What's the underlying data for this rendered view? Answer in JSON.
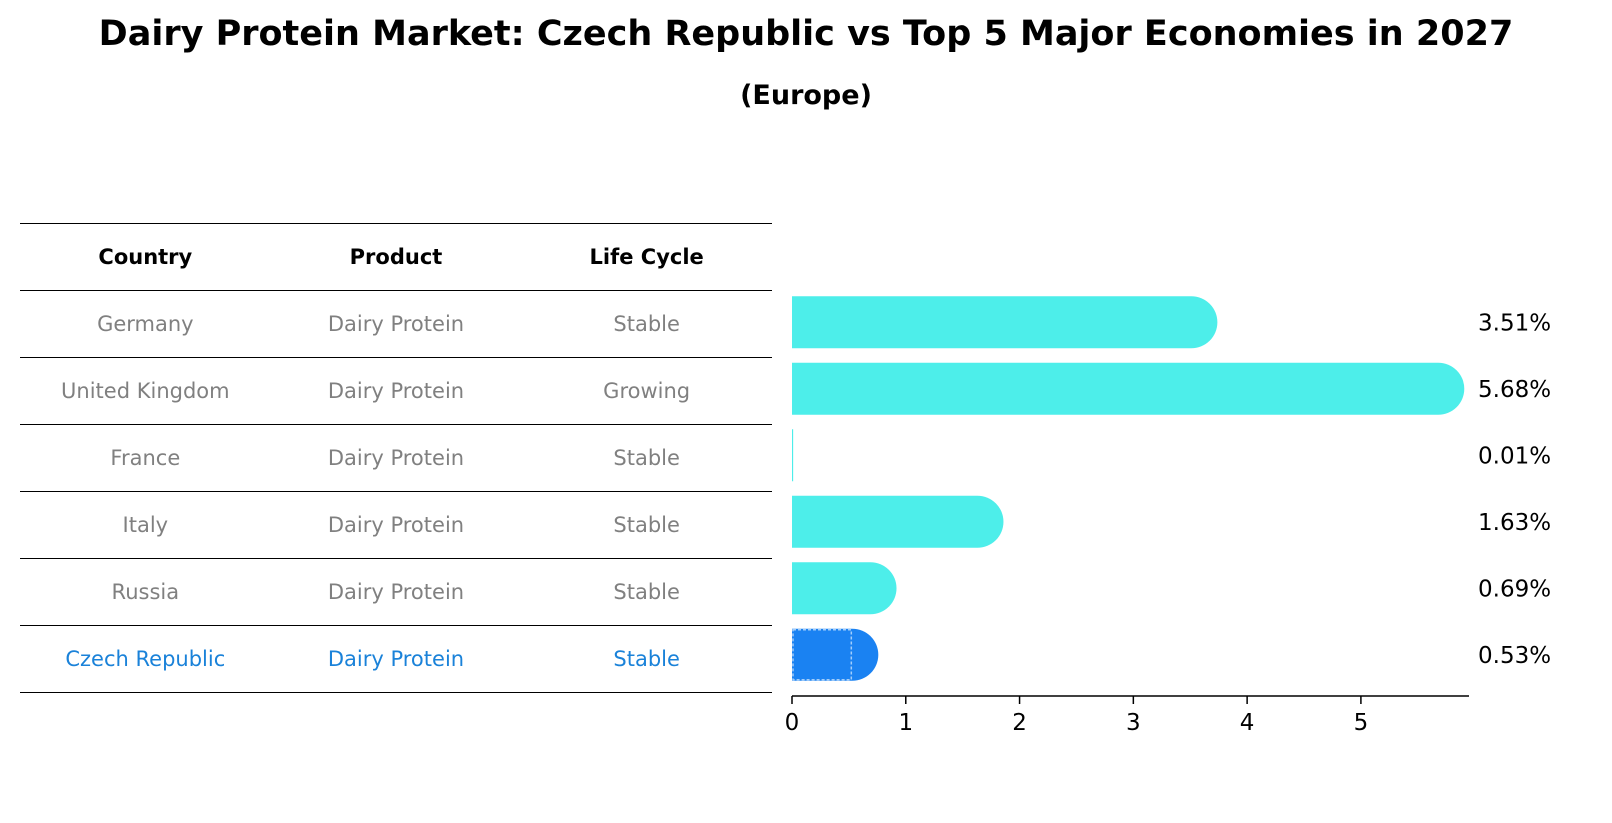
{
  "title": "Dairy Protein Market: Czech Republic vs Top 5 Major Economies in 2027",
  "subtitle": "(Europe)",
  "table": {
    "headers": [
      "Country",
      "Product",
      "Life Cycle"
    ],
    "rows": [
      {
        "country": "Germany",
        "product": "Dairy Protein",
        "life_cycle": "Stable"
      },
      {
        "country": "United Kingdom",
        "product": "Dairy Protein",
        "life_cycle": "Growing"
      },
      {
        "country": "France",
        "product": "Dairy Protein",
        "life_cycle": "Stable"
      },
      {
        "country": "Italy",
        "product": "Dairy Protein",
        "life_cycle": "Stable"
      },
      {
        "country": "Russia",
        "product": "Dairy Protein",
        "life_cycle": "Stable"
      },
      {
        "country": "Czech Republic",
        "product": "Dairy Protein",
        "life_cycle": "Stable"
      }
    ],
    "highlight_row": 5
  },
  "colors": {
    "bar": "#4deeea",
    "highlight_bar": "#1a82f2",
    "highlight_text": "#1a82d9",
    "muted_text": "#808080"
  },
  "chart_data": {
    "type": "bar",
    "orientation": "horizontal",
    "categories": [
      "Germany",
      "United Kingdom",
      "France",
      "Italy",
      "Russia",
      "Czech Republic"
    ],
    "values": [
      3.51,
      5.68,
      0.01,
      1.63,
      0.69,
      0.53
    ],
    "value_labels": [
      "3.51%",
      "5.68%",
      "0.01%",
      "1.63%",
      "0.69%",
      "0.53%"
    ],
    "xlim": [
      0,
      5.95
    ],
    "xticks": [
      0,
      1,
      2,
      3,
      4,
      5
    ],
    "highlight_index": 5,
    "grid": false
  }
}
